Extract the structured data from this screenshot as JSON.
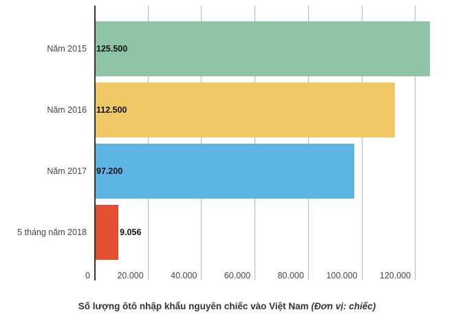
{
  "chart_data": {
    "type": "bar",
    "orientation": "horizontal",
    "title": "Số lượng ôtô nhập khẩu nguyên chiếc vào Việt Nam",
    "subtitle": "(Đơn vị: chiếc)",
    "xlabel": "",
    "ylabel": "",
    "categories": [
      "Năm 2015",
      "Năm 2016",
      "Năm 2017",
      "5 tháng năm 2018"
    ],
    "values": [
      125500,
      112500,
      97200,
      9056
    ],
    "value_labels": [
      "125.500",
      "112.500",
      "97.200",
      "9.056"
    ],
    "colors": [
      "#8fc3a6",
      "#f0c966",
      "#5db5e4",
      "#e34f32"
    ],
    "xlim": [
      0,
      128500
    ],
    "x_ticks": [
      0,
      20000,
      40000,
      60000,
      80000,
      100000,
      120000
    ],
    "x_tick_labels": [
      "0",
      "20.000",
      "40.000",
      "60.000",
      "80.000",
      "100.000",
      "120.000"
    ],
    "grid": true,
    "legend": null
  },
  "labels": {
    "title_main": "Số lượng ôtô nhập khẩu nguyên chiếc vào Việt Nam ",
    "title_unit": "(Đơn vị: chiếc)"
  }
}
